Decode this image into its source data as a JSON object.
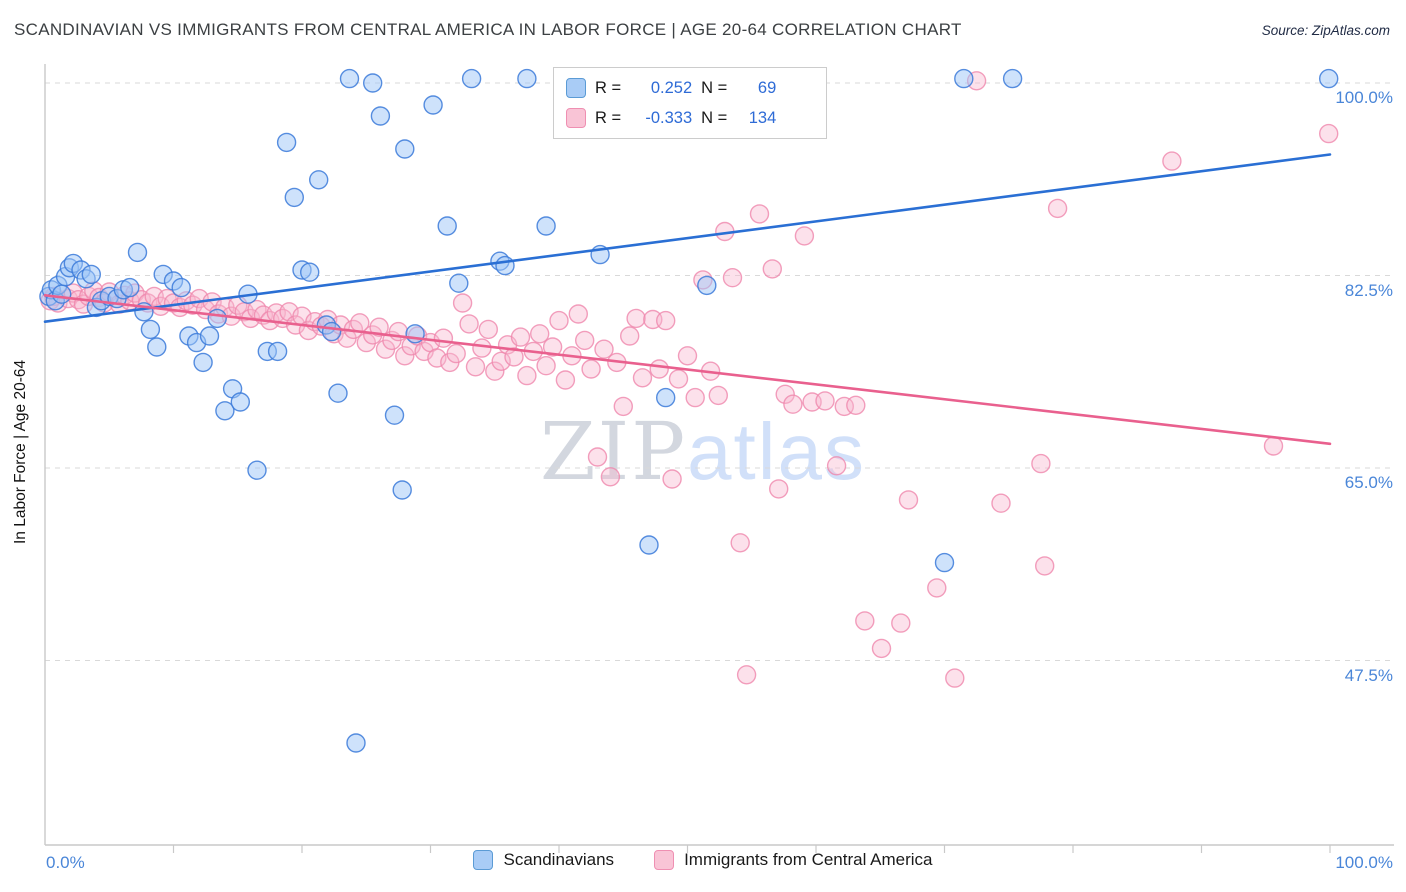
{
  "header": {
    "title": "SCANDINAVIAN VS IMMIGRANTS FROM CENTRAL AMERICA IN LABOR FORCE | AGE 20-64 CORRELATION CHART",
    "source": "Source: ZipAtlas.com"
  },
  "watermark": {
    "part1": "ZIP",
    "part2": "atlas"
  },
  "legend_box": {
    "rows": [
      {
        "r_label": "R =",
        "r_value": "0.252",
        "n_label": "N =",
        "n_value": "69"
      },
      {
        "r_label": "R =",
        "r_value": "-0.333",
        "n_label": "N =",
        "n_value": "134"
      }
    ]
  },
  "bottom_legend": {
    "items": [
      {
        "label": "Scandinavians"
      },
      {
        "label": "Immigrants from Central America"
      }
    ]
  },
  "colors": {
    "blue_stroke": "#3b7ad9",
    "blue_fill": "#9ec5f8",
    "blue_trend": "#2a6fd4",
    "pink_stroke": "#ef87ac",
    "pink_fill": "#f8b8cf",
    "pink_trend": "#e9608e",
    "axis": "#c9c9c9",
    "grid": "#d9d9d9",
    "tick_label": "#4a86d8"
  },
  "chart_data": {
    "type": "scatter",
    "title": "Scandinavian vs Immigrants from Central America In Labor Force | Age 20-64",
    "xlabel": "",
    "ylabel": "In Labor Force | Age 20-64",
    "x_axis": {
      "range": [
        0,
        100
      ],
      "min_label": "0.0%",
      "max_label": "100.0%"
    },
    "y_axis": {
      "tick_labels": [
        "100.0%",
        "82.5%",
        "65.0%",
        "47.5%"
      ],
      "tick_values": [
        100,
        82.5,
        65,
        47.5
      ],
      "range_shown": [
        30,
        101
      ],
      "grid": "dashed"
    },
    "series": [
      {
        "name": "Scandinavians",
        "R": 0.252,
        "N": 69,
        "points": [
          [
            0.3,
            80.6
          ],
          [
            0.5,
            81.2
          ],
          [
            0.8,
            80.2
          ],
          [
            1.0,
            81.6
          ],
          [
            1.3,
            80.8
          ],
          [
            1.6,
            82.4
          ],
          [
            1.9,
            83.2
          ],
          [
            2.2,
            83.6
          ],
          [
            2.8,
            83.0
          ],
          [
            3.2,
            82.2
          ],
          [
            3.6,
            82.6
          ],
          [
            4.0,
            79.6
          ],
          [
            4.4,
            80.2
          ],
          [
            5.0,
            80.6
          ],
          [
            5.6,
            80.4
          ],
          [
            6.1,
            81.2
          ],
          [
            6.6,
            81.4
          ],
          [
            7.2,
            84.6
          ],
          [
            7.7,
            79.2
          ],
          [
            8.2,
            77.6
          ],
          [
            8.7,
            76.0
          ],
          [
            9.2,
            82.6
          ],
          [
            10.0,
            82.0
          ],
          [
            10.6,
            81.4
          ],
          [
            11.2,
            77.0
          ],
          [
            11.8,
            76.4
          ],
          [
            12.3,
            74.6
          ],
          [
            12.8,
            77.0
          ],
          [
            13.4,
            78.6
          ],
          [
            14.0,
            70.2
          ],
          [
            14.6,
            72.2
          ],
          [
            15.2,
            71.0
          ],
          [
            15.8,
            80.8
          ],
          [
            16.5,
            64.8
          ],
          [
            17.3,
            75.6
          ],
          [
            18.1,
            75.6
          ],
          [
            18.8,
            94.6
          ],
          [
            19.4,
            89.6
          ],
          [
            20.0,
            83.0
          ],
          [
            20.6,
            82.8
          ],
          [
            21.3,
            91.2
          ],
          [
            21.9,
            78.0
          ],
          [
            22.3,
            77.4
          ],
          [
            22.8,
            71.8
          ],
          [
            23.7,
            100.4
          ],
          [
            24.2,
            40.0
          ],
          [
            25.5,
            100.0
          ],
          [
            26.1,
            97.0
          ],
          [
            27.2,
            69.8
          ],
          [
            27.8,
            63.0
          ],
          [
            28.0,
            94.0
          ],
          [
            28.8,
            77.2
          ],
          [
            30.2,
            98.0
          ],
          [
            31.3,
            87.0
          ],
          [
            32.2,
            81.8
          ],
          [
            33.2,
            100.4
          ],
          [
            35.4,
            83.8
          ],
          [
            35.8,
            83.4
          ],
          [
            37.5,
            100.4
          ],
          [
            39.0,
            87.0
          ],
          [
            43.2,
            84.4
          ],
          [
            47.0,
            58.0
          ],
          [
            48.3,
            71.4
          ],
          [
            51.5,
            81.6
          ],
          [
            52.2,
            97.0
          ],
          [
            70.0,
            56.4
          ],
          [
            71.5,
            100.4
          ],
          [
            75.3,
            100.4
          ],
          [
            99.9,
            100.4
          ]
        ]
      },
      {
        "name": "Immigrants from Central America",
        "R": -0.333,
        "N": 134,
        "points": [
          [
            0.4,
            80.2
          ],
          [
            0.7,
            80.6
          ],
          [
            1.0,
            80.0
          ],
          [
            1.8,
            80.4
          ],
          [
            2.2,
            80.9
          ],
          [
            2.6,
            80.3
          ],
          [
            3.0,
            79.9
          ],
          [
            3.4,
            80.6
          ],
          [
            3.8,
            81.1
          ],
          [
            4.2,
            80.5
          ],
          [
            4.6,
            80.0
          ],
          [
            5.0,
            81.0
          ],
          [
            5.8,
            79.9
          ],
          [
            6.2,
            80.7
          ],
          [
            6.6,
            80.2
          ],
          [
            7.0,
            80.9
          ],
          [
            7.5,
            80.3
          ],
          [
            8.0,
            80.0
          ],
          [
            8.5,
            80.6
          ],
          [
            9.0,
            79.7
          ],
          [
            9.5,
            80.4
          ],
          [
            10.0,
            80.0
          ],
          [
            10.5,
            79.6
          ],
          [
            11.0,
            80.2
          ],
          [
            11.5,
            79.8
          ],
          [
            12.0,
            80.4
          ],
          [
            12.5,
            79.4
          ],
          [
            13.0,
            80.1
          ],
          [
            13.5,
            79.0
          ],
          [
            14.0,
            79.6
          ],
          [
            14.5,
            78.8
          ],
          [
            15.0,
            79.8
          ],
          [
            15.5,
            79.2
          ],
          [
            16.0,
            78.6
          ],
          [
            16.5,
            79.4
          ],
          [
            17.0,
            78.9
          ],
          [
            17.5,
            78.4
          ],
          [
            18.0,
            79.1
          ],
          [
            18.5,
            78.6
          ],
          [
            19.0,
            79.2
          ],
          [
            19.5,
            78.0
          ],
          [
            20.0,
            78.8
          ],
          [
            20.5,
            77.5
          ],
          [
            21.0,
            78.3
          ],
          [
            21.5,
            77.9
          ],
          [
            22.0,
            78.5
          ],
          [
            22.5,
            77.2
          ],
          [
            23.0,
            78.0
          ],
          [
            23.5,
            76.8
          ],
          [
            24.0,
            77.6
          ],
          [
            24.5,
            78.2
          ],
          [
            25.0,
            76.4
          ],
          [
            25.5,
            77.1
          ],
          [
            26.0,
            77.8
          ],
          [
            26.5,
            75.8
          ],
          [
            27.0,
            76.6
          ],
          [
            27.5,
            77.4
          ],
          [
            28.0,
            75.2
          ],
          [
            28.5,
            76.1
          ],
          [
            29.0,
            77.0
          ],
          [
            29.5,
            75.6
          ],
          [
            30.0,
            76.4
          ],
          [
            30.5,
            75.0
          ],
          [
            31.0,
            76.8
          ],
          [
            31.5,
            74.6
          ],
          [
            32.0,
            75.4
          ],
          [
            32.5,
            80.0
          ],
          [
            33.0,
            78.1
          ],
          [
            33.5,
            74.2
          ],
          [
            34.0,
            75.9
          ],
          [
            34.5,
            77.6
          ],
          [
            35.0,
            73.8
          ],
          [
            35.5,
            74.7
          ],
          [
            36.0,
            76.2
          ],
          [
            36.5,
            75.1
          ],
          [
            37.0,
            76.9
          ],
          [
            37.5,
            73.4
          ],
          [
            38.0,
            75.6
          ],
          [
            38.5,
            77.2
          ],
          [
            39.0,
            74.3
          ],
          [
            39.5,
            76.0
          ],
          [
            40.0,
            78.4
          ],
          [
            40.5,
            73.0
          ],
          [
            41.0,
            75.2
          ],
          [
            41.5,
            79.0
          ],
          [
            42.0,
            76.6
          ],
          [
            42.5,
            74.0
          ],
          [
            43.0,
            66.0
          ],
          [
            43.5,
            75.8
          ],
          [
            44.0,
            64.2
          ],
          [
            44.5,
            74.6
          ],
          [
            45.0,
            70.6
          ],
          [
            45.5,
            77.0
          ],
          [
            46.0,
            78.6
          ],
          [
            46.5,
            73.2
          ],
          [
            47.3,
            78.5
          ],
          [
            47.8,
            74.0
          ],
          [
            48.3,
            78.4
          ],
          [
            48.8,
            64.0
          ],
          [
            49.3,
            73.1
          ],
          [
            50.0,
            75.2
          ],
          [
            50.6,
            71.4
          ],
          [
            51.2,
            82.1
          ],
          [
            51.8,
            73.8
          ],
          [
            52.4,
            71.6
          ],
          [
            52.9,
            86.5
          ],
          [
            53.5,
            82.3
          ],
          [
            54.1,
            58.2
          ],
          [
            54.6,
            46.2
          ],
          [
            55.6,
            88.1
          ],
          [
            56.6,
            83.1
          ],
          [
            57.1,
            63.1
          ],
          [
            57.6,
            71.7
          ],
          [
            58.2,
            70.8
          ],
          [
            59.1,
            86.1
          ],
          [
            59.7,
            71.0
          ],
          [
            60.7,
            71.1
          ],
          [
            61.6,
            65.2
          ],
          [
            62.2,
            70.6
          ],
          [
            63.1,
            70.7
          ],
          [
            63.8,
            51.1
          ],
          [
            65.1,
            48.6
          ],
          [
            66.6,
            50.9
          ],
          [
            67.2,
            62.1
          ],
          [
            69.4,
            54.1
          ],
          [
            70.8,
            45.9
          ],
          [
            72.5,
            100.2
          ],
          [
            74.4,
            61.8
          ],
          [
            77.5,
            65.4
          ],
          [
            77.8,
            56.1
          ],
          [
            78.8,
            88.6
          ],
          [
            87.7,
            92.9
          ],
          [
            95.6,
            67.0
          ],
          [
            99.9,
            95.4
          ]
        ]
      }
    ],
    "trend_lines": [
      {
        "series": "Scandinavians",
        "start": [
          0,
          78.3
        ],
        "end": [
          100,
          93.5
        ]
      },
      {
        "series": "Immigrants from Central America",
        "start": [
          0,
          80.7
        ],
        "end": [
          100,
          67.2
        ]
      }
    ],
    "legend_position": "bottom"
  }
}
